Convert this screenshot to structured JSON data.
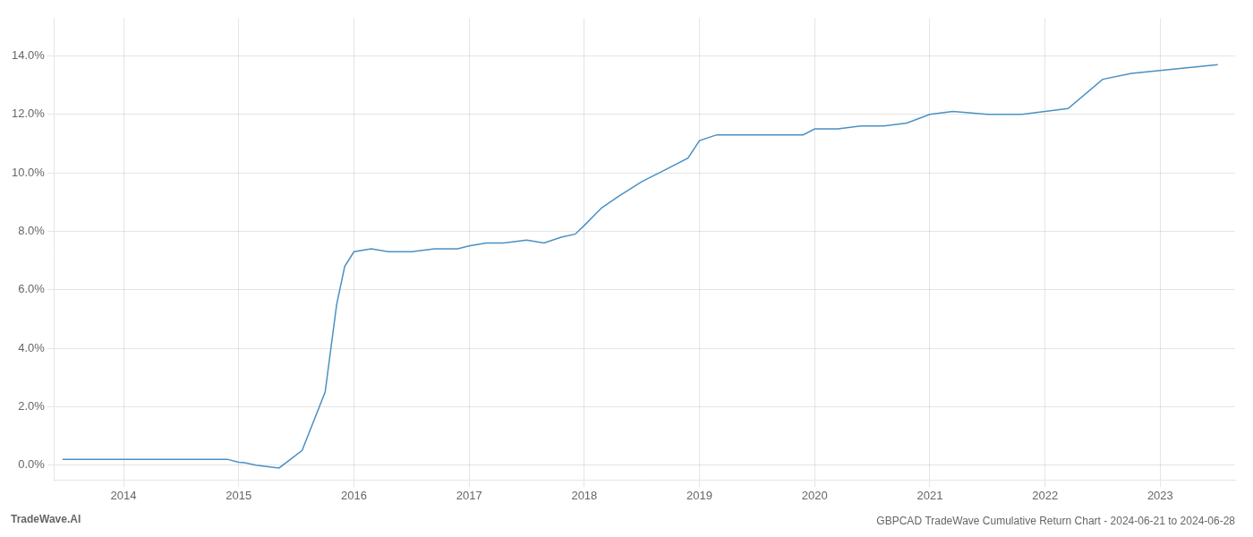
{
  "chart_data": {
    "type": "line",
    "title": "GBPCAD TradeWave Cumulative Return Chart - 2024-06-21 to 2024-06-28",
    "annotations": [
      "TradeWave.AI"
    ],
    "color": "#4a90c4",
    "x": [
      2013.47,
      2013.7,
      2014.0,
      2014.3,
      2014.6,
      2014.9,
      2015.0,
      2015.05,
      2015.15,
      2015.35,
      2015.55,
      2015.75,
      2015.85,
      2015.92,
      2016.0,
      2016.15,
      2016.3,
      2016.5,
      2016.7,
      2016.9,
      2017.0,
      2017.15,
      2017.3,
      2017.5,
      2017.65,
      2017.8,
      2017.92,
      2018.0,
      2018.15,
      2018.3,
      2018.5,
      2018.7,
      2018.9,
      2019.0,
      2019.15,
      2019.35,
      2019.5,
      2019.7,
      2019.9,
      2020.0,
      2020.2,
      2020.4,
      2020.6,
      2020.8,
      2021.0,
      2021.2,
      2021.5,
      2021.8,
      2022.0,
      2022.2,
      2022.5,
      2022.75,
      2023.0,
      2023.25,
      2023.5
    ],
    "values": [
      0.002,
      0.002,
      0.002,
      0.002,
      0.002,
      0.002,
      0.001,
      0.0008,
      0.0,
      -0.001,
      0.005,
      0.025,
      0.055,
      0.068,
      0.073,
      0.074,
      0.073,
      0.073,
      0.074,
      0.074,
      0.075,
      0.076,
      0.076,
      0.077,
      0.076,
      0.078,
      0.079,
      0.082,
      0.088,
      0.092,
      0.097,
      0.101,
      0.105,
      0.111,
      0.113,
      0.113,
      0.113,
      0.113,
      0.113,
      0.115,
      0.115,
      0.116,
      0.116,
      0.117,
      0.12,
      0.121,
      0.12,
      0.12,
      0.121,
      0.122,
      0.132,
      0.134,
      0.135,
      0.136,
      0.137
    ],
    "xlim": [
      2013.4,
      2023.65
    ],
    "ylim": [
      -0.005,
      0.153
    ],
    "xticks": [
      2014,
      2015,
      2016,
      2017,
      2018,
      2019,
      2020,
      2021,
      2022,
      2023
    ],
    "yticks": [
      {
        "value": 0.0,
        "label": "0.0%"
      },
      {
        "value": 0.02,
        "label": "2.0%"
      },
      {
        "value": 0.04,
        "label": "4.0%"
      },
      {
        "value": 0.06,
        "label": "6.0%"
      },
      {
        "value": 0.08,
        "label": "8.0%"
      },
      {
        "value": 0.1,
        "label": "10.0%"
      },
      {
        "value": 0.12,
        "label": "12.0%"
      },
      {
        "value": 0.14,
        "label": "14.0%"
      }
    ],
    "grid": true
  }
}
